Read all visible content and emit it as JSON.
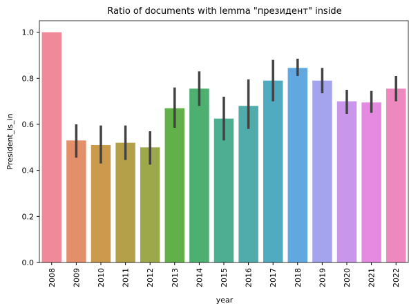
{
  "chart_data": {
    "type": "bar",
    "title": "Ratio of documents with lemma \"президент\" inside",
    "xlabel": "year",
    "ylabel": "President_is_in",
    "categories": [
      "2008",
      "2009",
      "2010",
      "2011",
      "2012",
      "2013",
      "2014",
      "2015",
      "2016",
      "2017",
      "2018",
      "2019",
      "2020",
      "2021",
      "2022"
    ],
    "values": [
      1.0,
      0.53,
      0.51,
      0.52,
      0.5,
      0.67,
      0.755,
      0.625,
      0.68,
      0.79,
      0.845,
      0.79,
      0.7,
      0.695,
      0.755
    ],
    "error_low": [
      null,
      0.455,
      0.43,
      0.445,
      0.425,
      0.585,
      0.68,
      0.53,
      0.58,
      0.7,
      0.81,
      0.735,
      0.645,
      0.65,
      0.7
    ],
    "error_high": [
      null,
      0.6,
      0.595,
      0.595,
      0.57,
      0.76,
      0.83,
      0.72,
      0.795,
      0.88,
      0.885,
      0.845,
      0.75,
      0.745,
      0.81
    ],
    "colors": [
      "#f0899a",
      "#e3906a",
      "#cc9a4d",
      "#b5a04a",
      "#9da84a",
      "#62b04a",
      "#4db071",
      "#4eae92",
      "#4facaa",
      "#50aac0",
      "#62a8e0",
      "#a3a3ee",
      "#c897eb",
      "#e48ae0",
      "#ee89c0"
    ],
    "error_color": "#424242",
    "ylim": [
      0,
      1.05
    ],
    "yticks": [
      {
        "value": 0,
        "label": "0.0"
      },
      0.2,
      0.4,
      0.6,
      0.8,
      {
        "value": 1,
        "label": "1.0"
      }
    ]
  }
}
